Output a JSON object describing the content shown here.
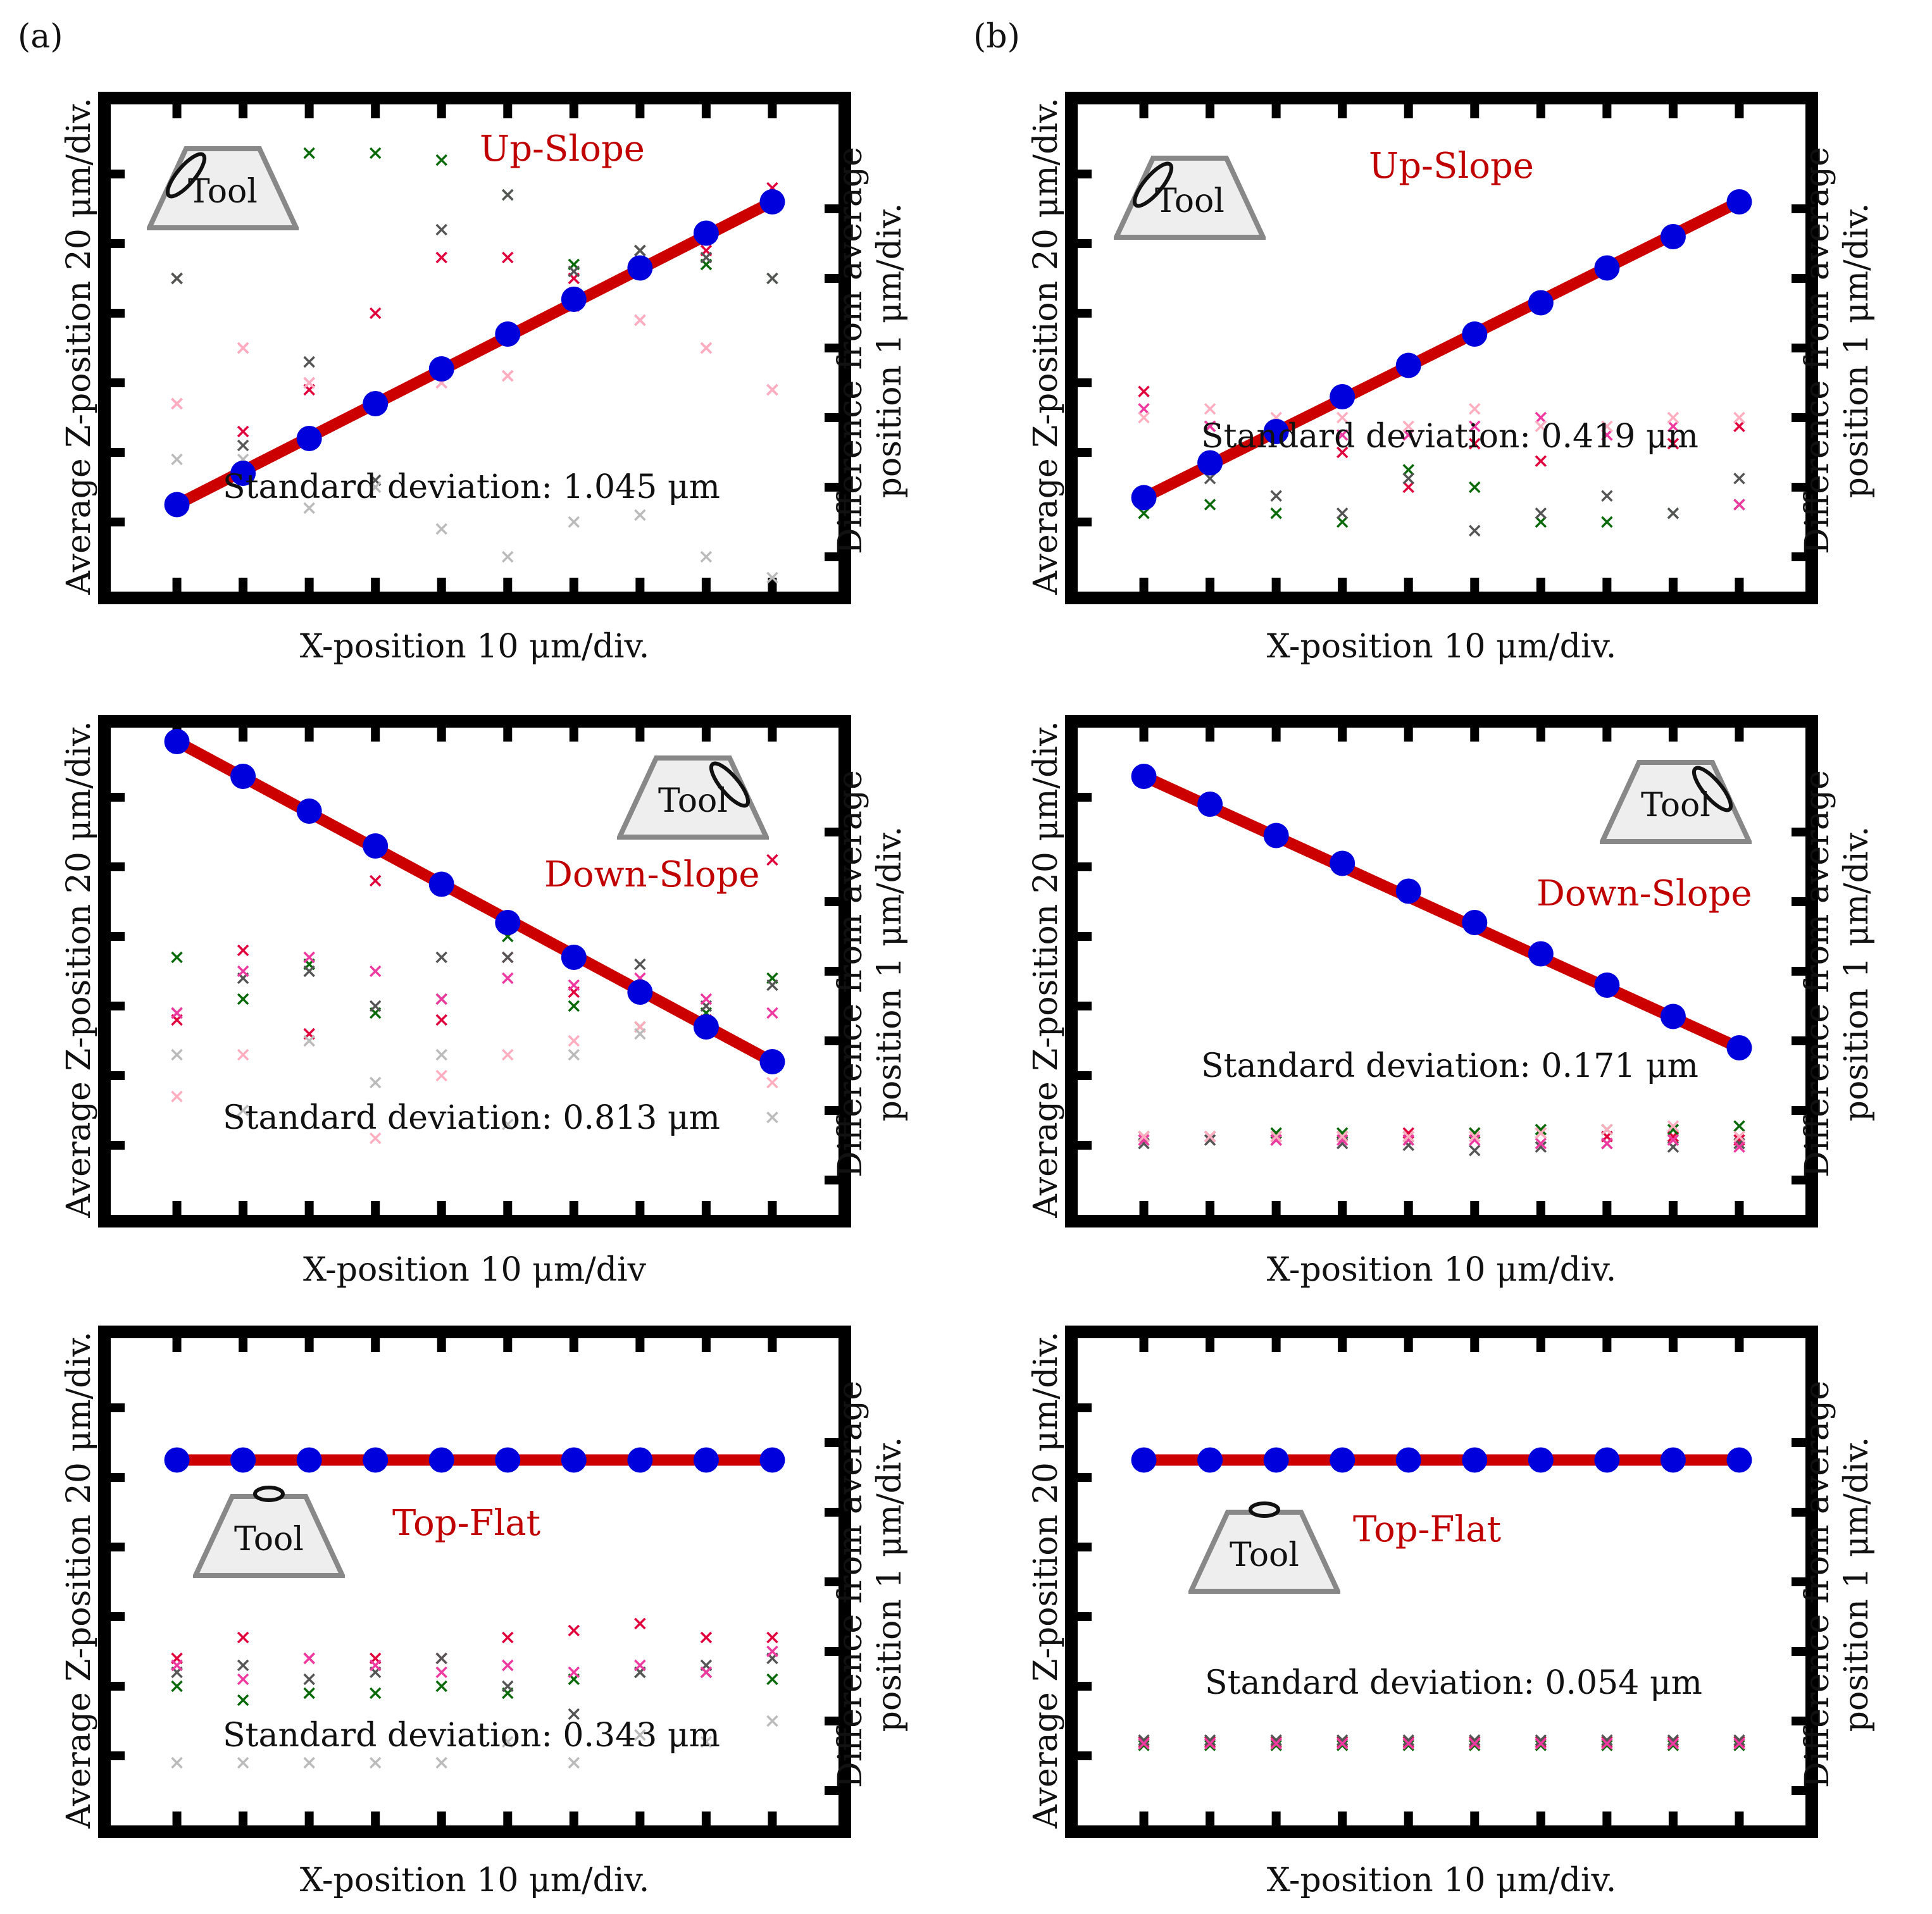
{
  "figure": {
    "label_a": "(a)",
    "label_b": "(b)"
  },
  "colors": {
    "fit_line": "#cc0000",
    "points": "#0000dd",
    "x_series": [
      "#e0003c",
      "#0a6a0a",
      "#555555",
      "#ee3aa0",
      "#ffaec0",
      "#bbbbbb"
    ]
  },
  "chart_data": [
    {
      "id": "a1",
      "type": "scatter",
      "title": "Up-Slope",
      "xlabel": "X-position 10 μm/div.",
      "ylabel": "Average Z-position 20 μm/div.",
      "y2label": [
        "Difference from average",
        "position 1 μm/div."
      ],
      "annotation": "Standard deviation: 1.045 μm",
      "tool_label": "Tool",
      "tool_orientation": "left",
      "xlim": [
        0,
        11
      ],
      "ylim": [
        0,
        14
      ],
      "y2lim": [
        -3.5,
        3.5
      ],
      "x": [
        1,
        2,
        3,
        4,
        5,
        6,
        7,
        8,
        9,
        10
      ],
      "z_avg": [
        2.5,
        3.4,
        4.4,
        5.4,
        6.4,
        7.4,
        8.4,
        9.3,
        10.3,
        11.2
      ],
      "diff_series": [
        {
          "name": "red",
          "values": [
            1.0,
            -1.2,
            -0.6,
            0.5,
            1.3,
            1.3,
            1.0,
            1.4,
            1.4,
            2.3
          ]
        },
        {
          "name": "green",
          "values": [
            1.0,
            2.6,
            2.8,
            2.8,
            2.7,
            2.2,
            1.2,
            1.4,
            1.2,
            1.0
          ]
        },
        {
          "name": "gray",
          "values": [
            1.0,
            -1.4,
            -0.2,
            -1.9,
            1.7,
            2.2,
            1.1,
            1.4,
            1.3,
            1.0
          ]
        },
        {
          "name": "magenta",
          "values": [
            -0.8,
            0.0,
            -0.5,
            -0.7,
            -0.5,
            -0.4,
            0.6,
            0.4,
            0.0,
            -0.6
          ]
        },
        {
          "name": "pink",
          "values": [
            -0.8,
            0.0,
            -0.5,
            -0.7,
            -0.5,
            -0.4,
            0.8,
            0.4,
            0.0,
            -0.6
          ]
        },
        {
          "name": "lightgray",
          "values": [
            -1.6,
            -1.6,
            -2.3,
            -2.0,
            -2.6,
            -3.0,
            -2.5,
            -2.4,
            -3.0,
            -3.3
          ]
        }
      ]
    },
    {
      "id": "b1",
      "type": "scatter",
      "title": "Up-Slope",
      "xlabel": "X-position 10 μm/div.",
      "ylabel": "Average Z-position 20 μm/div.",
      "y2label": [
        "Difference from average",
        "position 1 μm/div."
      ],
      "annotation": "Standard deviation: 0.419 μm",
      "tool_label": "Tool",
      "tool_orientation": "left",
      "xlim": [
        0,
        11
      ],
      "ylim": [
        0,
        14
      ],
      "y2lim": [
        -1.4,
        1.4
      ],
      "x": [
        1,
        2,
        3,
        4,
        5,
        6,
        7,
        8,
        9,
        10
      ],
      "z_avg": [
        2.7,
        3.7,
        4.6,
        5.6,
        6.5,
        7.4,
        8.3,
        9.3,
        10.2,
        11.2
      ],
      "diff_series": [
        {
          "name": "red",
          "values": [
            -0.25,
            -0.45,
            -0.5,
            -0.6,
            -0.8,
            -0.55,
            -0.65,
            -0.5,
            -0.55,
            -0.45
          ]
        },
        {
          "name": "green",
          "values": [
            -0.95,
            -0.9,
            -0.95,
            -1.0,
            -0.7,
            -0.8,
            -1.0,
            -1.0,
            -0.95,
            -0.9
          ]
        },
        {
          "name": "gray",
          "values": [
            -0.85,
            -0.75,
            -0.85,
            -0.95,
            -0.75,
            -1.05,
            -0.95,
            -0.85,
            -0.95,
            -0.75
          ]
        },
        {
          "name": "magenta",
          "values": [
            -0.35,
            -0.45,
            -0.45,
            -0.5,
            -0.5,
            -0.45,
            -0.4,
            -0.5,
            -0.45,
            -0.9
          ]
        },
        {
          "name": "pink",
          "values": [
            -0.4,
            -0.35,
            -0.4,
            -0.4,
            -0.45,
            -0.35,
            -0.45,
            -0.45,
            -0.4,
            -0.4
          ]
        }
      ]
    },
    {
      "id": "a2",
      "type": "scatter",
      "title": "Down-Slope",
      "xlabel": "X-position 10 μm/div",
      "ylabel": "Average Z-position 20 μm/div.",
      "y2label": [
        "Difference from average",
        "position 1 μm/div."
      ],
      "annotation": "Standard deviation: 0.813 μm",
      "tool_label": "Tool",
      "tool_orientation": "right",
      "xlim": [
        0,
        11
      ],
      "ylim": [
        0,
        14
      ],
      "y2lim": [
        -3.5,
        3.5
      ],
      "x": [
        1,
        2,
        3,
        4,
        5,
        6,
        7,
        8,
        9,
        10
      ],
      "z_avg": [
        13.6,
        12.6,
        11.6,
        10.6,
        9.5,
        8.4,
        7.4,
        6.4,
        5.4,
        4.4
      ],
      "diff_series": [
        {
          "name": "red",
          "values": [
            -0.7,
            0.3,
            -0.9,
            1.3,
            -0.7,
            0.2,
            -0.3,
            -0.3,
            -0.7,
            1.6
          ]
        },
        {
          "name": "green",
          "values": [
            0.2,
            -0.4,
            0.1,
            -0.6,
            -0.4,
            0.5,
            -0.5,
            -0.8,
            -0.6,
            -0.1
          ]
        },
        {
          "name": "gray",
          "values": [
            -0.6,
            -0.1,
            0.0,
            -0.5,
            0.2,
            0.2,
            0.2,
            0.1,
            -0.5,
            -0.2
          ]
        },
        {
          "name": "magenta",
          "values": [
            -0.6,
            0.0,
            0.2,
            0.0,
            -0.4,
            -0.1,
            -0.2,
            -0.1,
            -0.4,
            -0.6
          ]
        },
        {
          "name": "pink",
          "values": [
            -1.8,
            -1.2,
            -1.0,
            -2.4,
            -1.5,
            -1.2,
            -1.0,
            -0.8,
            -0.8,
            -1.6
          ]
        },
        {
          "name": "lightgray",
          "values": [
            -1.2,
            -2.0,
            -1.0,
            -1.6,
            -1.2,
            -2.2,
            -1.2,
            -0.9,
            -0.8,
            -2.1
          ]
        }
      ]
    },
    {
      "id": "b2",
      "type": "scatter",
      "title": "Down-Slope",
      "xlabel": "X-position 10 μm/div.",
      "ylabel": "Average Z-position 20 μm/div.",
      "y2label": [
        "Difference from average",
        "position 1 μm/div."
      ],
      "annotation": "Standard deviation: 0.171 μm",
      "tool_label": "Tool",
      "tool_orientation": "right",
      "xlim": [
        0,
        11
      ],
      "ylim": [
        0,
        14
      ],
      "y2lim": [
        -1.4,
        1.4
      ],
      "x": [
        1,
        2,
        3,
        4,
        5,
        6,
        7,
        8,
        9,
        10
      ],
      "z_avg": [
        12.6,
        11.8,
        10.9,
        10.1,
        9.3,
        8.4,
        7.5,
        6.6,
        5.7,
        4.8
      ],
      "diff_series": [
        {
          "name": "red",
          "values": [
            -0.95,
            -0.95,
            -0.95,
            -0.95,
            -0.93,
            -0.93,
            -0.93,
            -0.95,
            -0.95,
            -0.97
          ]
        },
        {
          "name": "green",
          "values": [
            -0.95,
            -0.95,
            -0.93,
            -0.93,
            -0.95,
            -0.93,
            -0.91,
            -0.91,
            -0.91,
            -0.89
          ]
        },
        {
          "name": "gray",
          "values": [
            -0.99,
            -0.97,
            -0.97,
            -0.99,
            -1.0,
            -1.03,
            -1.01,
            -0.99,
            -1.01,
            -0.99
          ]
        },
        {
          "name": "magenta",
          "values": [
            -0.97,
            -0.95,
            -0.97,
            -0.97,
            -0.97,
            -0.97,
            -0.99,
            -0.99,
            -0.97,
            -1.01
          ]
        },
        {
          "name": "pink",
          "values": [
            -0.95,
            -0.95,
            -0.95,
            -0.95,
            -0.95,
            -0.95,
            -0.93,
            -0.91,
            -0.89,
            -0.95
          ]
        }
      ]
    },
    {
      "id": "a3",
      "type": "scatter",
      "title": "Top-Flat",
      "xlabel": "X-position 10 μm/div.",
      "ylabel": "Average Z-position 20 μm/div.",
      "y2label": [
        "Difference from average",
        "position 1 μm/div."
      ],
      "annotation": "Standard deviation: 0.343 μm",
      "tool_label": "Tool",
      "tool_orientation": "top",
      "xlim": [
        0,
        11
      ],
      "ylim": [
        0,
        14
      ],
      "y2lim": [
        -3.5,
        3.5
      ],
      "x": [
        1,
        2,
        3,
        4,
        5,
        6,
        7,
        8,
        9,
        10
      ],
      "z_avg": [
        10.5,
        10.5,
        10.5,
        10.5,
        10.5,
        10.5,
        10.5,
        10.5,
        10.5,
        10.5
      ],
      "diff_series": [
        {
          "name": "red",
          "values": [
            -1.1,
            -0.8,
            -1.1,
            -1.1,
            -1.1,
            -0.8,
            -0.7,
            -0.6,
            -0.8,
            -0.8
          ]
        },
        {
          "name": "green",
          "values": [
            -1.5,
            -1.7,
            -1.6,
            -1.6,
            -1.5,
            -1.6,
            -1.4,
            -1.3,
            -1.3,
            -1.4
          ]
        },
        {
          "name": "gray",
          "values": [
            -1.3,
            -1.2,
            -1.4,
            -1.3,
            -1.1,
            -1.5,
            -1.9,
            -1.3,
            -1.2,
            -1.1
          ]
        },
        {
          "name": "magenta",
          "values": [
            -1.2,
            -1.4,
            -1.1,
            -1.2,
            -1.3,
            -1.2,
            -1.3,
            -1.2,
            -1.3,
            -1.0
          ]
        },
        {
          "name": "lightgray",
          "values": [
            -2.6,
            -2.6,
            -2.6,
            -2.6,
            -2.6,
            -2.3,
            -2.6,
            -2.2,
            -2.3,
            -2.0
          ]
        }
      ]
    },
    {
      "id": "b3",
      "type": "scatter",
      "title": "Top-Flat",
      "xlabel": "X-position 10 μm/div.",
      "ylabel": "Average Z-position 20 μm/div.",
      "y2label": [
        "Difference from average",
        "position 1 μm/div."
      ],
      "annotation": "Standard deviation: 0.054 μm",
      "tool_label": "Tool",
      "tool_orientation": "top",
      "xlim": [
        0,
        11
      ],
      "ylim": [
        0,
        14
      ],
      "y2lim": [
        -1.4,
        1.4
      ],
      "x": [
        1,
        2,
        3,
        4,
        5,
        6,
        7,
        8,
        9,
        10
      ],
      "z_avg": [
        10.5,
        10.5,
        10.5,
        10.5,
        10.5,
        10.5,
        10.5,
        10.5,
        10.5,
        10.5
      ],
      "diff_series": [
        {
          "name": "red",
          "values": [
            -0.92,
            -0.92,
            -0.92,
            -0.92,
            -0.92,
            -0.92,
            -0.92,
            -0.92,
            -0.92,
            -0.92
          ]
        },
        {
          "name": "green",
          "values": [
            -0.94,
            -0.94,
            -0.94,
            -0.94,
            -0.94,
            -0.94,
            -0.94,
            -0.94,
            -0.94,
            -0.94
          ]
        },
        {
          "name": "gray",
          "values": [
            -0.91,
            -0.91,
            -0.91,
            -0.91,
            -0.91,
            -0.91,
            -0.91,
            -0.91,
            -0.91,
            -0.91
          ]
        },
        {
          "name": "magenta",
          "values": [
            -0.93,
            -0.93,
            -0.93,
            -0.93,
            -0.93,
            -0.93,
            -0.93,
            -0.93,
            -0.93,
            -0.93
          ]
        }
      ]
    }
  ]
}
